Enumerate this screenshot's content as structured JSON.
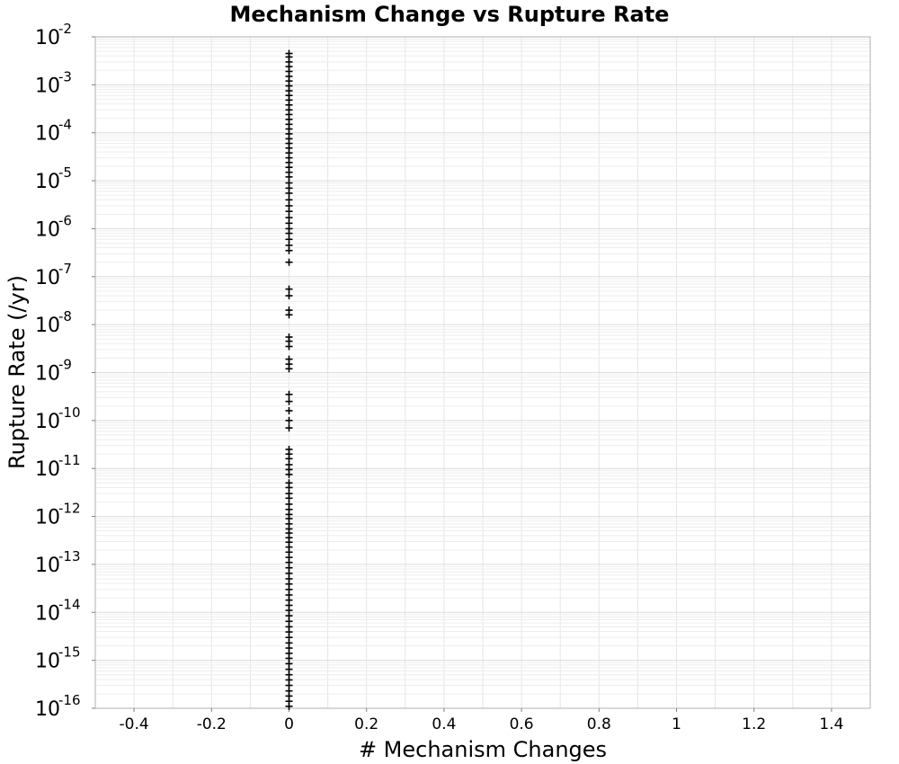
{
  "chart_data": {
    "type": "scatter",
    "title": "Mechanism Change vs Rupture Rate",
    "xlabel": "# Mechanism Changes",
    "ylabel": "Rupture Rate (/yr)",
    "xlim": [
      -0.5,
      1.5
    ],
    "ylim": [
      1e-16,
      0.01
    ],
    "y_scale": "log",
    "grid": true,
    "marker": "plus",
    "marker_color": "#000000",
    "x_ticks": [
      {
        "value": -0.4,
        "label": "-0.4"
      },
      {
        "value": -0.2,
        "label": "-0.2"
      },
      {
        "value": 0,
        "label": "0"
      },
      {
        "value": 0.2,
        "label": "0.2"
      },
      {
        "value": 0.4,
        "label": "0.4"
      },
      {
        "value": 0.6,
        "label": "0.6"
      },
      {
        "value": 0.8,
        "label": "0.8"
      },
      {
        "value": 1,
        "label": "1"
      },
      {
        "value": 1.2,
        "label": "1.2"
      },
      {
        "value": 1.4,
        "label": "1.4"
      }
    ],
    "y_ticks": [
      {
        "exp": -16,
        "base": "10",
        "sup": "-16"
      },
      {
        "exp": -15,
        "base": "10",
        "sup": "-15"
      },
      {
        "exp": -14,
        "base": "10",
        "sup": "-14"
      },
      {
        "exp": -13,
        "base": "10",
        "sup": "-13"
      },
      {
        "exp": -12,
        "base": "10",
        "sup": "-12"
      },
      {
        "exp": -11,
        "base": "10",
        "sup": "-11"
      },
      {
        "exp": -10,
        "base": "10",
        "sup": "-10"
      },
      {
        "exp": -9,
        "base": "10",
        "sup": "-9"
      },
      {
        "exp": -8,
        "base": "10",
        "sup": "-8"
      },
      {
        "exp": -7,
        "base": "10",
        "sup": "-7"
      },
      {
        "exp": -6,
        "base": "10",
        "sup": "-6"
      },
      {
        "exp": -5,
        "base": "10",
        "sup": "-5"
      },
      {
        "exp": -4,
        "base": "10",
        "sup": "-4"
      },
      {
        "exp": -3,
        "base": "10",
        "sup": "-3"
      },
      {
        "exp": -2,
        "base": "10",
        "sup": "-2"
      }
    ],
    "points": [
      {
        "x": 0,
        "y": 0.0045
      },
      {
        "x": 0,
        "y": 0.0038
      },
      {
        "x": 0,
        "y": 0.003
      },
      {
        "x": 0,
        "y": 0.0024
      },
      {
        "x": 0,
        "y": 0.0019
      },
      {
        "x": 0,
        "y": 0.0015
      },
      {
        "x": 0,
        "y": 0.0012
      },
      {
        "x": 0,
        "y": 0.00095
      },
      {
        "x": 0,
        "y": 0.00075
      },
      {
        "x": 0,
        "y": 0.0006
      },
      {
        "x": 0,
        "y": 0.00048
      },
      {
        "x": 0,
        "y": 0.00038
      },
      {
        "x": 0,
        "y": 0.0003
      },
      {
        "x": 0,
        "y": 0.00024
      },
      {
        "x": 0,
        "y": 0.00019
      },
      {
        "x": 0,
        "y": 0.00015
      },
      {
        "x": 0,
        "y": 0.00012
      },
      {
        "x": 0,
        "y": 9.5e-05
      },
      {
        "x": 0,
        "y": 7.5e-05
      },
      {
        "x": 0,
        "y": 6e-05
      },
      {
        "x": 0,
        "y": 4.8e-05
      },
      {
        "x": 0,
        "y": 3.8e-05
      },
      {
        "x": 0,
        "y": 3e-05
      },
      {
        "x": 0,
        "y": 2.4e-05
      },
      {
        "x": 0,
        "y": 1.9e-05
      },
      {
        "x": 0,
        "y": 1.5e-05
      },
      {
        "x": 0,
        "y": 1.2e-05
      },
      {
        "x": 0,
        "y": 9e-06
      },
      {
        "x": 0,
        "y": 7e-06
      },
      {
        "x": 0,
        "y": 5.5e-06
      },
      {
        "x": 0,
        "y": 4e-06
      },
      {
        "x": 0,
        "y": 3e-06
      },
      {
        "x": 0,
        "y": 2.3e-06
      },
      {
        "x": 0,
        "y": 1.7e-06
      },
      {
        "x": 0,
        "y": 1.3e-06
      },
      {
        "x": 0,
        "y": 1e-06
      },
      {
        "x": 0,
        "y": 8e-07
      },
      {
        "x": 0,
        "y": 6e-07
      },
      {
        "x": 0,
        "y": 4.5e-07
      },
      {
        "x": 0,
        "y": 3.5e-07
      },
      {
        "x": 0,
        "y": 2e-07
      },
      {
        "x": 0,
        "y": 5.5e-08
      },
      {
        "x": 0,
        "y": 4e-08
      },
      {
        "x": 0,
        "y": 2e-08
      },
      {
        "x": 0,
        "y": 1.6e-08
      },
      {
        "x": 0,
        "y": 5.5e-09
      },
      {
        "x": 0,
        "y": 4.5e-09
      },
      {
        "x": 0,
        "y": 3.5e-09
      },
      {
        "x": 0,
        "y": 1.9e-09
      },
      {
        "x": 0,
        "y": 1.5e-09
      },
      {
        "x": 0,
        "y": 1.2e-09
      },
      {
        "x": 0,
        "y": 3.5e-10
      },
      {
        "x": 0,
        "y": 2.5e-10
      },
      {
        "x": 0,
        "y": 1.6e-10
      },
      {
        "x": 0,
        "y": 1e-10
      },
      {
        "x": 0,
        "y": 7e-11
      },
      {
        "x": 0,
        "y": 2.5e-11
      },
      {
        "x": 0,
        "y": 2e-11
      },
      {
        "x": 0,
        "y": 1.6e-11
      },
      {
        "x": 0,
        "y": 1.2e-11
      },
      {
        "x": 0,
        "y": 9.5e-12
      },
      {
        "x": 0,
        "y": 7.5e-12
      },
      {
        "x": 0,
        "y": 5e-12
      },
      {
        "x": 0,
        "y": 4e-12
      },
      {
        "x": 0,
        "y": 3e-12
      },
      {
        "x": 0,
        "y": 2.4e-12
      },
      {
        "x": 0,
        "y": 1.8e-12
      },
      {
        "x": 0,
        "y": 1.4e-12
      },
      {
        "x": 0,
        "y": 1.1e-12
      },
      {
        "x": 0,
        "y": 9e-13
      },
      {
        "x": 0,
        "y": 7e-13
      },
      {
        "x": 0,
        "y": 5.5e-13
      },
      {
        "x": 0,
        "y": 4.5e-13
      },
      {
        "x": 0,
        "y": 3.6e-13
      },
      {
        "x": 0,
        "y": 2.9e-13
      },
      {
        "x": 0,
        "y": 2.3e-13
      },
      {
        "x": 0,
        "y": 1.8e-13
      },
      {
        "x": 0,
        "y": 1.4e-13
      },
      {
        "x": 0,
        "y": 1.1e-13
      },
      {
        "x": 0,
        "y": 8.5e-14
      },
      {
        "x": 0,
        "y": 6.5e-14
      },
      {
        "x": 0,
        "y": 5e-14
      },
      {
        "x": 0,
        "y": 3.9e-14
      },
      {
        "x": 0,
        "y": 3e-14
      },
      {
        "x": 0,
        "y": 2.3e-14
      },
      {
        "x": 0,
        "y": 1.8e-14
      },
      {
        "x": 0,
        "y": 1.4e-14
      },
      {
        "x": 0,
        "y": 1.1e-14
      },
      {
        "x": 0,
        "y": 8.5e-15
      },
      {
        "x": 0,
        "y": 6.5e-15
      },
      {
        "x": 0,
        "y": 5e-15
      },
      {
        "x": 0,
        "y": 3.9e-15
      },
      {
        "x": 0,
        "y": 3e-15
      },
      {
        "x": 0,
        "y": 2.3e-15
      },
      {
        "x": 0,
        "y": 1.8e-15
      },
      {
        "x": 0,
        "y": 1.4e-15
      },
      {
        "x": 0,
        "y": 1.1e-15
      },
      {
        "x": 0,
        "y": 8.5e-16
      },
      {
        "x": 0,
        "y": 6.5e-16
      },
      {
        "x": 0,
        "y": 5e-16
      },
      {
        "x": 0,
        "y": 3.9e-16
      },
      {
        "x": 0,
        "y": 3e-16
      },
      {
        "x": 0,
        "y": 2.3e-16
      },
      {
        "x": 0,
        "y": 1.8e-16
      },
      {
        "x": 0,
        "y": 1.4e-16
      },
      {
        "x": 0,
        "y": 1.1e-16
      }
    ]
  }
}
